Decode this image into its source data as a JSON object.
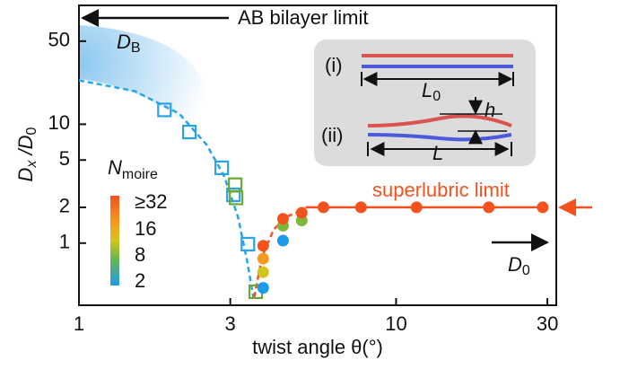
{
  "chart_data": {
    "type": "scatter",
    "xlabel": "twist angle θ(°)",
    "ylabel_parts": [
      "D",
      "x",
      " /D",
      "0"
    ],
    "xlim": [
      1,
      32
    ],
    "ylim": [
      0.3,
      100
    ],
    "xscale": "log",
    "yscale": "log",
    "xticks": [
      1,
      3,
      10,
      30
    ],
    "yticks": [
      1,
      2,
      5,
      10,
      50
    ],
    "series": [
      {
        "mode": "line",
        "dash": true,
        "color": "#29a3e8",
        "x": [
          1,
          1.5,
          2.07,
          2.53,
          2.87,
          3.17,
          3.39,
          3.55
        ],
        "values": [
          23.4,
          19,
          12.3,
          6.7,
          3.66,
          1.68,
          0.71,
          0.35
        ]
      },
      {
        "mode": "line",
        "dash": true,
        "color": "#f4511e",
        "x": [
          3.57,
          3.78,
          4.11,
          4.54,
          5.18
        ],
        "values": [
          0.35,
          0.77,
          1.3,
          1.68,
          1.93
        ]
      },
      {
        "mode": "line",
        "dash": false,
        "color": "#f4511e",
        "x": [
          5.18,
          30
        ],
        "values": [
          2,
          2
        ]
      },
      {
        "mode": "markers",
        "marker": "square",
        "color": "#29a3e8",
        "x": [
          1.86,
          2.23,
          2.82,
          3.07,
          3.41
        ],
        "values": [
          13.2,
          8.6,
          4.3,
          2.55,
          0.98
        ]
      },
      {
        "mode": "markers",
        "marker": "square",
        "color": "#6aa832",
        "x": [
          3.11,
          3.13,
          3.61
        ],
        "values": [
          3.1,
          2.4,
          0.39
        ]
      },
      {
        "mode": "markers",
        "marker": "circle",
        "color": "#1e9be8",
        "x": [
          3.81,
          4.4
        ],
        "values": [
          0.42,
          1.05
        ]
      },
      {
        "mode": "markers",
        "marker": "circle",
        "color": "#7db83a",
        "x": [
          4.4,
          5.04
        ],
        "values": [
          1.4,
          1.55
        ]
      },
      {
        "mode": "markers",
        "marker": "circle",
        "color": "#d4c41e",
        "x": [
          3.81
        ],
        "values": [
          0.57
        ]
      },
      {
        "mode": "markers",
        "marker": "circle",
        "color": "#f59a1e",
        "x": [
          3.81
        ],
        "values": [
          0.74
        ]
      },
      {
        "mode": "markers",
        "marker": "circle",
        "color": "#f4511e",
        "x": [
          3.81,
          4.4,
          5.04,
          5.9,
          7.75,
          11.6,
          19.6,
          29
        ],
        "values": [
          0.95,
          1.6,
          1.8,
          2,
          2,
          2,
          2,
          2
        ]
      }
    ],
    "annotations": {
      "ab_limit": "AB bilayer limit",
      "db": [
        "D",
        "B"
      ],
      "superlubric": "superlubric limit",
      "d0": [
        "D",
        "0"
      ]
    },
    "colorbar": {
      "title": [
        "N",
        "moire"
      ],
      "labels": [
        "≥32",
        "16",
        "8",
        "2"
      ]
    },
    "inset": {
      "i": "(i)",
      "ii": "(ii)",
      "l0": [
        "L",
        "0"
      ],
      "h": "h",
      "l": "L"
    }
  }
}
